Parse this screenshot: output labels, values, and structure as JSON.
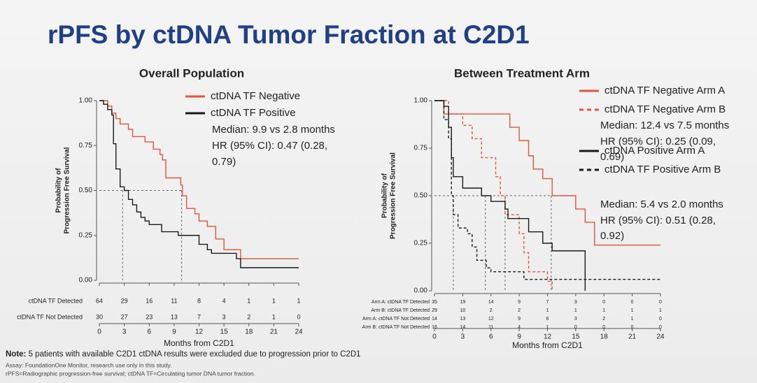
{
  "title": "rPFS by ctDNA Tumor Fraction at C2D1",
  "chart_data": [
    {
      "type": "step",
      "title": "Overall Population",
      "xlabel": "Months from C2D1",
      "ylabel": [
        "Probability of",
        "Progression Free Survival"
      ],
      "xlim": [
        0,
        24
      ],
      "ylim": [
        0,
        1
      ],
      "xticks": [
        0,
        3,
        6,
        9,
        12,
        15,
        18,
        21,
        24
      ],
      "yticks": [
        {
          "value": 0,
          "label": "0.00"
        },
        {
          "value": 0.25,
          "label": "0.25"
        },
        {
          "value": 0.5,
          "label": "0.50"
        },
        {
          "value": 0.75,
          "label": "0.75"
        },
        {
          "value": 1,
          "label": "1.00"
        }
      ],
      "series": [
        {
          "name": "ctDNA TF Negative",
          "color": "#e4553a",
          "dash": false,
          "x": [
            0,
            1,
            1.5,
            2,
            2.5,
            3.5,
            4,
            5.5,
            6.5,
            7.3,
            7.6,
            8,
            9.8,
            10,
            10.5,
            11.5,
            12,
            13,
            14,
            15,
            17,
            24
          ],
          "y": [
            1,
            0.97,
            0.93,
            0.9,
            0.87,
            0.84,
            0.8,
            0.77,
            0.73,
            0.7,
            0.67,
            0.57,
            0.53,
            0.47,
            0.4,
            0.37,
            0.33,
            0.3,
            0.23,
            0.17,
            0.12,
            0.12
          ]
        },
        {
          "name": "ctDNA TF Positive",
          "color": "#1a1a1a",
          "dash": false,
          "x": [
            0,
            0.5,
            1,
            1.5,
            1.7,
            2,
            2.5,
            3,
            3.5,
            4,
            4.5,
            5,
            5.5,
            6,
            7.5,
            9.5,
            12,
            13,
            13.5,
            16.5,
            17,
            24
          ],
          "y": [
            1,
            0.98,
            0.95,
            0.92,
            0.76,
            0.62,
            0.52,
            0.5,
            0.45,
            0.42,
            0.38,
            0.35,
            0.33,
            0.31,
            0.27,
            0.25,
            0.2,
            0.17,
            0.15,
            0.12,
            0.07,
            0.07
          ]
        }
      ],
      "reference_y": 0.5,
      "medians": [
        9.9,
        2.8
      ],
      "annotations": [
        [
          "Median: 9.9 vs 2.8 months",
          "HR (95% CI): 0.47 (0.28,",
          "0.79)"
        ]
      ],
      "risk_table": [
        {
          "label": "ctDNA TF Detected",
          "values": [
            64,
            29,
            16,
            11,
            8,
            4,
            1,
            1,
            1
          ]
        },
        {
          "label": "ctDNA TF Not Detected",
          "values": [
            30,
            27,
            23,
            13,
            7,
            3,
            2,
            1,
            0
          ]
        }
      ]
    },
    {
      "type": "step",
      "title": "Between Treatment Arm",
      "xlabel": "Months from C2D1",
      "ylabel": [
        "Probability of",
        "Progression Free Survival"
      ],
      "xlim": [
        0,
        24
      ],
      "ylim": [
        0,
        1
      ],
      "xticks": [
        0,
        3,
        6,
        9,
        12,
        15,
        18,
        21,
        24
      ],
      "yticks": [
        {
          "value": 0,
          "label": "0.00"
        },
        {
          "value": 0.25,
          "label": "0.25"
        },
        {
          "value": 0.5,
          "label": "0.50"
        },
        {
          "value": 0.75,
          "label": "0.75"
        },
        {
          "value": 1,
          "label": "1.00"
        }
      ],
      "series": [
        {
          "name": "ctDNA TF Negative Arm A",
          "color": "#e4553a",
          "dash": false,
          "x": [
            0,
            1,
            8,
            9,
            10,
            10.5,
            11.5,
            12.5,
            15,
            16,
            17,
            24
          ],
          "y": [
            1,
            0.93,
            0.86,
            0.79,
            0.71,
            0.64,
            0.59,
            0.5,
            0.43,
            0.36,
            0.24,
            0.24
          ]
        },
        {
          "name": "ctDNA TF Negative Arm B",
          "color": "#e4553a",
          "dash": true,
          "x": [
            0,
            1.5,
            3,
            4,
            5,
            6.5,
            7,
            7.5,
            9,
            9.5,
            10,
            12,
            12.5
          ],
          "y": [
            1,
            0.93,
            0.87,
            0.8,
            0.7,
            0.6,
            0.5,
            0.4,
            0.3,
            0.2,
            0.1,
            0.05,
            0
          ]
        },
        {
          "name": "ctDNA Positive Arm A",
          "color": "#1a1a1a",
          "dash": false,
          "x": [
            0,
            1,
            1.5,
            1.8,
            2,
            3,
            5,
            6,
            7.5,
            7.8,
            10,
            11.5,
            12.5,
            16
          ],
          "y": [
            1,
            0.97,
            0.86,
            0.7,
            0.6,
            0.54,
            0.5,
            0.47,
            0.43,
            0.38,
            0.31,
            0.25,
            0.21,
            0
          ]
        },
        {
          "name": "ctDNA TF Positive Arm B",
          "color": "#1a1a1a",
          "dash": true,
          "x": [
            0,
            1,
            1.5,
            1.8,
            2,
            2.5,
            3.5,
            4,
            4.5,
            5.5,
            6,
            9.5,
            24
          ],
          "y": [
            1,
            0.9,
            0.8,
            0.5,
            0.4,
            0.33,
            0.3,
            0.23,
            0.16,
            0.12,
            0.1,
            0.06,
            0.06
          ]
        }
      ],
      "reference_y": 0.5,
      "medians": [
        12.4,
        7.5,
        5.4,
        2.0
      ],
      "annotations": [
        [
          "Median: 12.4 vs 7.5 months",
          "HR (95% CI): 0.25 (0.09,",
          "0.69)"
        ],
        [
          "Median: 5.4 vs 2.0 months",
          "HR (95% CI): 0.51 (0.28,",
          "0.92)"
        ]
      ],
      "risk_table": [
        {
          "label": "Arm A: ctDNA TF Detected",
          "values": [
            35,
            19,
            14,
            9,
            7,
            3,
            0,
            0,
            0
          ]
        },
        {
          "label": "Arm B: ctDNA TF Detected",
          "values": [
            29,
            10,
            2,
            2,
            1,
            1,
            1,
            1,
            1
          ]
        },
        {
          "label": "Arm A: ctDNA TF Not Detected",
          "values": [
            14,
            13,
            12,
            9,
            6,
            3,
            2,
            1,
            0
          ]
        },
        {
          "label": "Arm B: ctDNA TF Not Detected",
          "values": [
            16,
            14,
            11,
            4,
            1,
            0,
            0,
            0,
            0
          ]
        }
      ]
    }
  ],
  "note": {
    "label": "Note:",
    "text": "5 patients with available C2D1 ctDNA results were excluded due to progression prior to C2D1"
  },
  "footnotes": [
    "Assay: FoundationOne Monitor, research use only in this study.",
    "rPFS=Radiographic progression-free survival; ctDNA TF=Circulating tumor DNA tumor fraction."
  ]
}
